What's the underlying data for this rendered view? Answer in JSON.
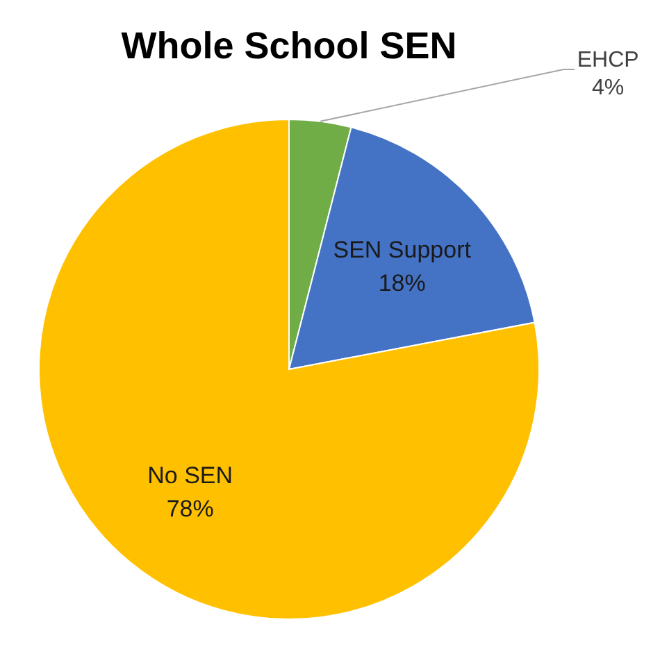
{
  "chart_data": {
    "type": "pie",
    "title": "Whole School SEN",
    "categories": [
      "EHCP",
      "SEN Support",
      "No SEN"
    ],
    "values": [
      4,
      18,
      78
    ],
    "value_labels": [
      "4%",
      "18%",
      "78%"
    ],
    "colors": [
      "#70ad47",
      "#4472c4",
      "#ffc000"
    ],
    "legend": false
  }
}
